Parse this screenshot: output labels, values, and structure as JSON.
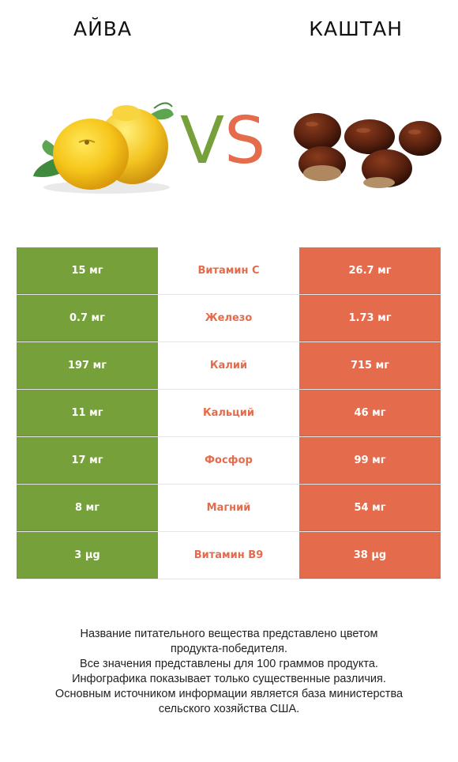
{
  "header": {
    "left_title": "АЙВА",
    "right_title": "КАШТАН",
    "vs_v": "V",
    "vs_s": "S"
  },
  "colors": {
    "left": "#76a03a",
    "right": "#e46b4b"
  },
  "rows": [
    {
      "left": "15 мг",
      "label": "Витамин C",
      "right": "26.7 мг",
      "winner": "right"
    },
    {
      "left": "0.7 мг",
      "label": "Железо",
      "right": "1.73 мг",
      "winner": "right"
    },
    {
      "left": "197 мг",
      "label": "Калий",
      "right": "715 мг",
      "winner": "right"
    },
    {
      "left": "11 мг",
      "label": "Кальций",
      "right": "46 мг",
      "winner": "right"
    },
    {
      "left": "17 мг",
      "label": "Фосфор",
      "right": "99 мг",
      "winner": "right"
    },
    {
      "left": "8 мг",
      "label": "Магний",
      "right": "54 мг",
      "winner": "right"
    },
    {
      "left": "3 µg",
      "label": "Витамин B9",
      "right": "38 µg",
      "winner": "right"
    }
  ],
  "footer": {
    "line1": "Название питательного вещества представлено цветом",
    "line2": "продукта-победителя.",
    "line3": "Все значения представлены для 100 граммов продукта.",
    "line4": "Инфографика показывает только существенные различия.",
    "line5": "Основным источником информации является база министерства",
    "line6": "сельского хозяйства США."
  }
}
